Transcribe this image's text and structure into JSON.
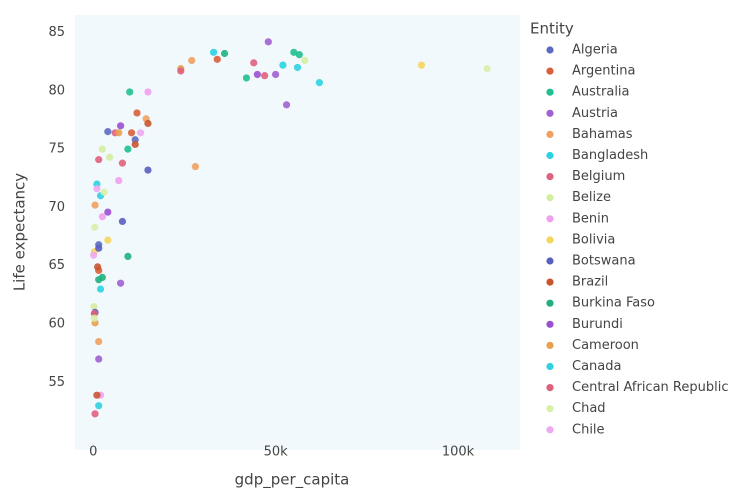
{
  "chart_data": {
    "type": "scatter",
    "xlabel": "gdp_per_capita",
    "ylabel": "Life expectancy",
    "legend_title": "Entity",
    "xlim": [
      -5000,
      117000
    ],
    "ylim": [
      49.2,
      86.5
    ],
    "xticks": [
      0,
      {
        "value": 50000,
        "label": "50k"
      },
      {
        "value": 100000,
        "label": "100k"
      }
    ],
    "yticks": [
      55,
      60,
      65,
      70,
      75,
      80,
      85
    ],
    "grid": false,
    "legend_position": "right",
    "series": [
      {
        "name": "Algeria",
        "color": "#5c6bc0",
        "x": [
          4000,
          1500,
          11500
        ],
        "y": [
          76.5,
          66.8,
          75.8
        ]
      },
      {
        "name": "Argentina",
        "color": "#d9603b",
        "x": [
          12000,
          10500,
          1500,
          34000
        ],
        "y": [
          78.1,
          76.4,
          64.6,
          82.7
        ]
      },
      {
        "name": "Australia",
        "color": "#1fbf8f",
        "x": [
          10000,
          42000,
          55000,
          56500,
          9500
        ],
        "y": [
          79.9,
          81.1,
          83.3,
          83.1,
          75.0
        ]
      },
      {
        "name": "Austria",
        "color": "#a05fd0",
        "x": [
          48000,
          53000,
          50000,
          7500,
          1500
        ],
        "y": [
          84.2,
          78.8,
          81.4,
          63.5,
          57.0
        ]
      },
      {
        "name": "Bahamas",
        "color": "#f0a060",
        "x": [
          27000,
          28000,
          14500,
          500,
          1500
        ],
        "y": [
          82.6,
          73.5,
          77.6,
          70.2,
          58.5
        ]
      },
      {
        "name": "Bangladesh",
        "color": "#2bd3e0",
        "x": [
          33000,
          52000,
          62000,
          1000,
          2000
        ],
        "y": [
          83.3,
          82.2,
          80.7,
          72.0,
          63.0
        ]
      },
      {
        "name": "Belgium",
        "color": "#e06080",
        "x": [
          44000,
          1500,
          6000,
          500
        ],
        "y": [
          82.4,
          74.1,
          76.4,
          52.3
        ]
      },
      {
        "name": "Belize",
        "color": "#d4eea0",
        "x": [
          58000,
          2500,
          200,
          4500
        ],
        "y": [
          82.6,
          75.0,
          61.5,
          74.3
        ]
      },
      {
        "name": "Benin",
        "color": "#f0a0f0",
        "x": [
          15000,
          7000,
          2500,
          2000
        ],
        "y": [
          79.9,
          72.3,
          69.2,
          53.9
        ]
      },
      {
        "name": "Bolivia",
        "color": "#f5d560",
        "x": [
          90000,
          4000,
          300
        ],
        "y": [
          82.2,
          67.2,
          66.2
        ]
      },
      {
        "name": "Botswana",
        "color": "#5a5fc0",
        "x": [
          15000,
          8000,
          1500,
          500
        ],
        "y": [
          73.2,
          68.8,
          66.5,
          61.0
        ]
      },
      {
        "name": "Brazil",
        "color": "#c95530",
        "x": [
          15000,
          11500,
          1000,
          1200
        ],
        "y": [
          77.2,
          75.4,
          53.9,
          64.9
        ]
      },
      {
        "name": "Burkina Faso",
        "color": "#20b080",
        "x": [
          9500,
          2500,
          36000,
          1500
        ],
        "y": [
          65.8,
          64.0,
          83.2,
          63.8
        ]
      },
      {
        "name": "Burundi",
        "color": "#9a50d0",
        "x": [
          45000,
          7500,
          4000
        ],
        "y": [
          81.4,
          77.0,
          69.6
        ]
      },
      {
        "name": "Cameroon",
        "color": "#e8a050",
        "x": [
          24000,
          7000,
          500
        ],
        "y": [
          81.9,
          76.4,
          60.1
        ]
      },
      {
        "name": "Canada",
        "color": "#30d0e0",
        "x": [
          56000,
          2000,
          1500
        ],
        "y": [
          82.0,
          71.0,
          53.0
        ]
      },
      {
        "name": "Central African Republic",
        "color": "#e0607a",
        "x": [
          47000,
          24000,
          8000,
          300
        ],
        "y": [
          81.3,
          81.7,
          73.8,
          60.9
        ]
      },
      {
        "name": "Chad",
        "color": "#d8f0a8",
        "x": [
          108000,
          3000,
          400,
          300
        ],
        "y": [
          81.9,
          71.3,
          68.3,
          60.5
        ]
      },
      {
        "name": "Chile",
        "color": "#f0a8f0",
        "x": [
          13000,
          1000,
          100
        ],
        "y": [
          76.4,
          71.6,
          65.9
        ]
      }
    ]
  }
}
